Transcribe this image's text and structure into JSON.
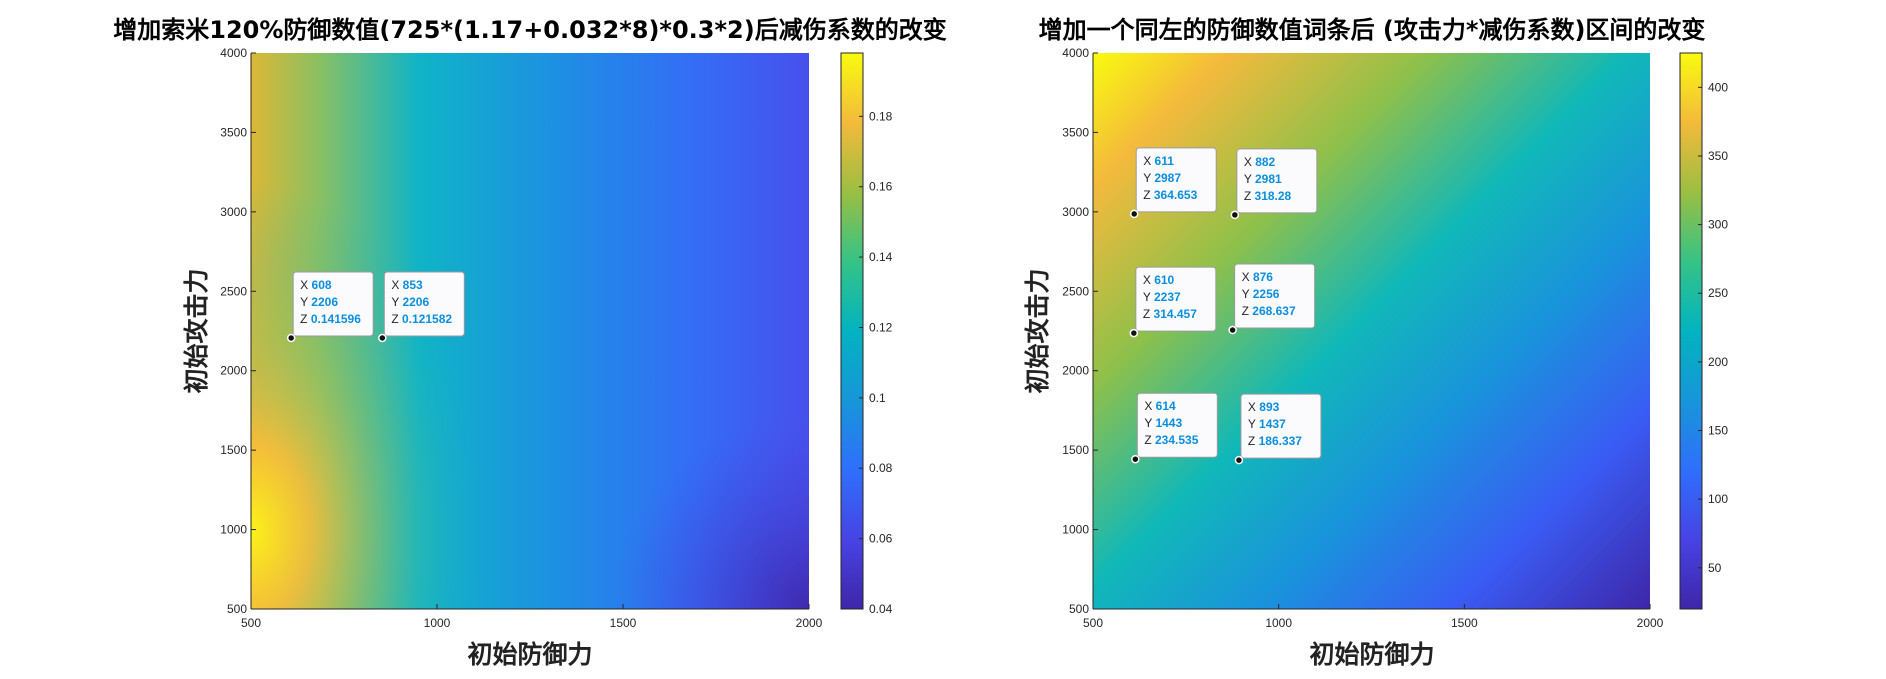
{
  "chart_data": [
    {
      "type": "heatmap",
      "title": "增加索米120%防御数值(725*(1.17+0.032*8)*0.3*2)后减伤系数的改变",
      "xlabel": "初始防御力",
      "ylabel": "初始攻击力",
      "xlim": [
        500,
        2000
      ],
      "ylim": [
        500,
        4000
      ],
      "xticks": [
        "500",
        "1000",
        "1500",
        "2000"
      ],
      "yticks": [
        "500",
        "1000",
        "1500",
        "2000",
        "2500",
        "3000",
        "3500",
        "4000"
      ],
      "colorbar": {
        "range": [
          0.04,
          0.198
        ],
        "ticks": [
          "0.04",
          "0.06",
          "0.08",
          "0.1",
          "0.12",
          "0.14",
          "0.16",
          "0.18"
        ]
      },
      "datatips": [
        {
          "x": "608",
          "y": "2206",
          "z": "0.141596"
        },
        {
          "x": "853",
          "y": "2206",
          "z": "0.121582"
        }
      ]
    },
    {
      "type": "heatmap",
      "title": "增加一个同左的防御数值词条后 (攻击力*减伤系数)区间的改变",
      "xlabel": "初始防御力",
      "ylabel": "初始攻击力",
      "xlim": [
        500,
        2000
      ],
      "ylim": [
        500,
        4000
      ],
      "xticks": [
        "500",
        "1000",
        "1500",
        "2000"
      ],
      "yticks": [
        "500",
        "1000",
        "1500",
        "2000",
        "2500",
        "3000",
        "3500",
        "4000"
      ],
      "colorbar": {
        "range": [
          20,
          425
        ],
        "ticks": [
          "50",
          "100",
          "150",
          "200",
          "250",
          "300",
          "350",
          "400"
        ]
      },
      "datatips": [
        {
          "x": "611",
          "y": "2987",
          "z": "364.653"
        },
        {
          "x": "882",
          "y": "2981",
          "z": "318.28"
        },
        {
          "x": "610",
          "y": "2237",
          "z": "314.457"
        },
        {
          "x": "876",
          "y": "2256",
          "z": "268.637"
        },
        {
          "x": "614",
          "y": "1443",
          "z": "234.535"
        },
        {
          "x": "893",
          "y": "1437",
          "z": "186.337"
        }
      ]
    }
  ]
}
